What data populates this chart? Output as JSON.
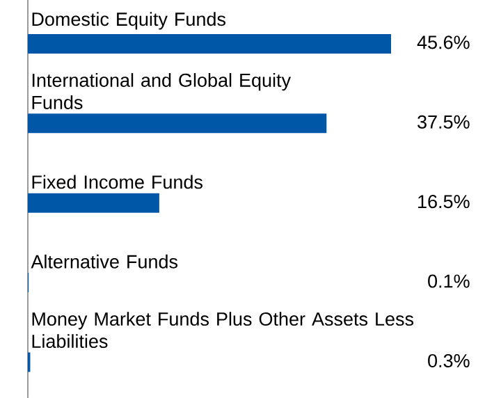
{
  "chart_data": {
    "type": "bar",
    "orientation": "horizontal",
    "color": "#0057a8",
    "categories": [
      "Domestic Equity Funds",
      "International and Global Equity Funds",
      "Fixed Income Funds",
      "Alternative Funds",
      "Money Market Funds Plus Other Assets Less Liabilities"
    ],
    "values": [
      45.6,
      37.5,
      16.5,
      0.1,
      0.3
    ],
    "value_labels": [
      "45.6%",
      "37.5%",
      "16.5%",
      "0.1%",
      "0.3%"
    ]
  }
}
